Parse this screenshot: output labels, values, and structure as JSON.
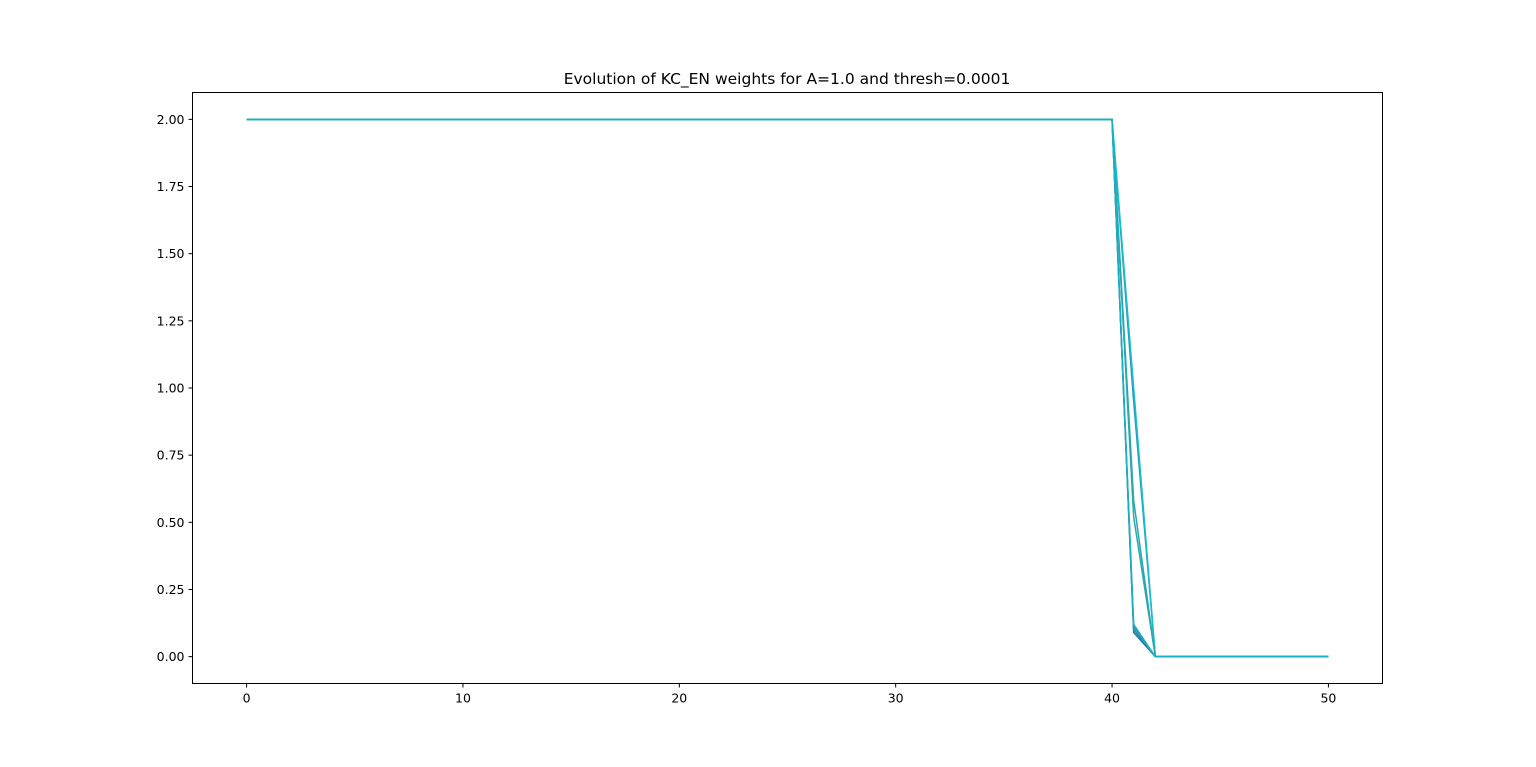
{
  "chart_data": {
    "type": "line",
    "title": "Evolution of KC_EN weights for A=1.0 and thresh=0.0001",
    "xlabel": "",
    "ylabel": "",
    "xlim": [
      -2.5,
      52.5
    ],
    "ylim": [
      -0.1,
      2.1
    ],
    "xticks": [
      0,
      10,
      20,
      30,
      40,
      50
    ],
    "xtick_labels": [
      "0",
      "10",
      "20",
      "30",
      "40",
      "50"
    ],
    "yticks": [
      0.0,
      0.25,
      0.5,
      0.75,
      1.0,
      1.25,
      1.5,
      1.75,
      2.0
    ],
    "ytick_labels": [
      "0.00",
      "0.25",
      "0.50",
      "0.75",
      "1.00",
      "1.25",
      "1.50",
      "1.75",
      "2.00"
    ],
    "grid": false,
    "legend": "none",
    "x": [
      0,
      1,
      2,
      3,
      4,
      5,
      6,
      7,
      8,
      9,
      10,
      11,
      12,
      13,
      14,
      15,
      16,
      17,
      18,
      19,
      20,
      21,
      22,
      23,
      24,
      25,
      26,
      27,
      28,
      29,
      30,
      31,
      32,
      33,
      34,
      35,
      36,
      37,
      38,
      39,
      40,
      41,
      42,
      43,
      44,
      45,
      46,
      47,
      48,
      49,
      50
    ],
    "series": [
      {
        "color": "#1f77b4",
        "drop": [
          2.0,
          0.09,
          0.0
        ]
      },
      {
        "color": "#2a8ab0",
        "drop": [
          2.0,
          0.1,
          0.0
        ]
      },
      {
        "color": "#2f9aa8",
        "drop": [
          2.0,
          0.11,
          0.0
        ]
      },
      {
        "color": "#1f9ab8",
        "drop": [
          2.0,
          0.95,
          0.0
        ]
      },
      {
        "color": "#29a6b0",
        "drop": [
          2.0,
          0.58,
          0.0
        ]
      },
      {
        "color": "#17becf",
        "drop": [
          2.0,
          1.0,
          0.0
        ]
      },
      {
        "color": "#2ca8a8",
        "drop": [
          2.0,
          0.52,
          0.0
        ]
      },
      {
        "color": "#17b0c8",
        "drop": [
          2.0,
          0.12,
          0.0
        ]
      }
    ]
  }
}
